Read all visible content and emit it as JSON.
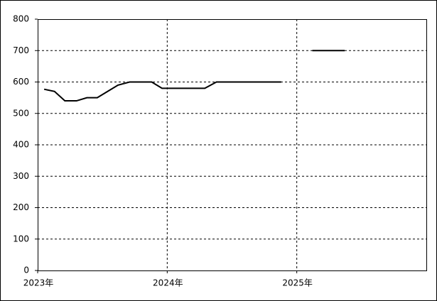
{
  "chart_data": {
    "type": "line",
    "x": [
      2023.05,
      2023.13,
      2023.21,
      2023.3,
      2023.38,
      2023.46,
      2023.54,
      2023.62,
      2023.71,
      2023.79,
      2023.88,
      2023.96,
      2024.05,
      2024.13,
      2024.21,
      2024.29,
      2024.38,
      2024.46,
      2024.54,
      2024.62,
      2024.71,
      2024.79,
      2024.88,
      2025.0,
      2025.12,
      2025.2,
      2025.29,
      2025.37
    ],
    "series": [
      {
        "color": "#000000",
        "values": [
          577,
          570,
          540,
          540,
          550,
          550,
          570,
          590,
          600,
          600,
          600,
          580,
          580,
          580,
          580,
          580,
          600,
          600,
          600,
          600,
          600,
          600,
          600,
          null,
          700,
          700,
          700,
          700
        ]
      }
    ],
    "xlim": [
      2023,
      2026
    ],
    "xticks": [
      {
        "value": 2023,
        "label": "2023年"
      },
      {
        "value": 2024,
        "label": "2024年"
      },
      {
        "value": 2025,
        "label": "2025年"
      }
    ],
    "ylim": [
      0,
      800
    ],
    "yticks": [
      0,
      100,
      200,
      300,
      400,
      500,
      600,
      700,
      800
    ],
    "grid": true
  }
}
